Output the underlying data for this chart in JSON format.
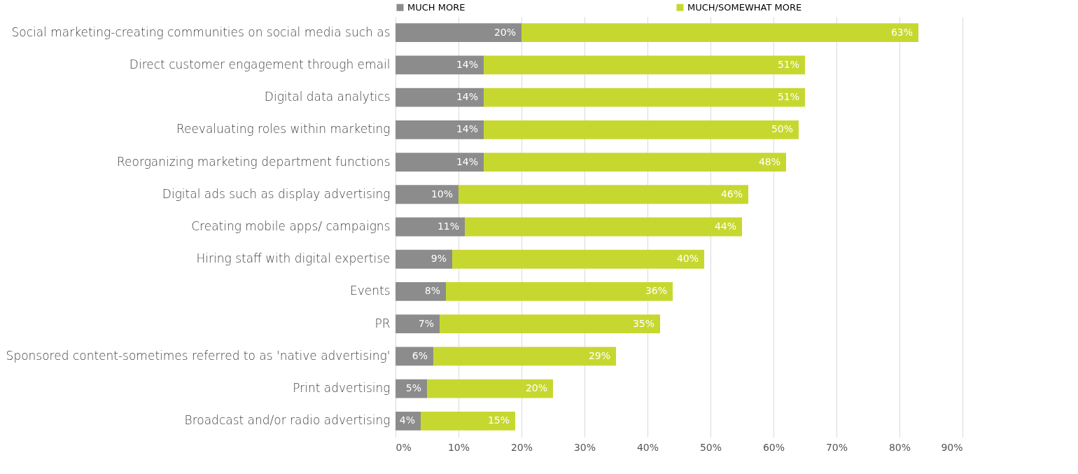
{
  "chart_data": {
    "type": "bar",
    "orientation": "horizontal",
    "stacked": true,
    "grid": "x",
    "legend": "top",
    "categories": [
      "Social marketing-creating communities on social media such as",
      "Direct customer engagement through email",
      "Digital data analytics",
      "Reevaluating roles within marketing",
      "Reorganizing marketing department functions",
      "Digital ads such as display advertising",
      "Creating mobile apps/ campaigns",
      "Hiring staff with digital expertise",
      "Events",
      "PR",
      "Sponsored content-sometimes referred to as 'native advertising'",
      "Print advertising",
      "Broadcast and/or radio advertising"
    ],
    "series": [
      {
        "name": "MUCH MORE",
        "color": "#8c8c8c",
        "values": [
          20,
          14,
          14,
          14,
          14,
          10,
          11,
          9,
          8,
          7,
          6,
          5,
          4
        ],
        "value_labels": [
          "20%",
          "14%",
          "14%",
          "14%",
          "14%",
          "10%",
          "11%",
          "9%",
          "8%",
          "7%",
          "6%",
          "5%",
          "4%"
        ]
      },
      {
        "name": "MUCH/SOMEWHAT MORE",
        "color": "#c6d830",
        "values": [
          63,
          51,
          51,
          50,
          48,
          46,
          44,
          40,
          36,
          35,
          29,
          20,
          15
        ],
        "value_labels": [
          "63%",
          "51%",
          "51%",
          "50%",
          "48%",
          "46%",
          "44%",
          "40%",
          "36%",
          "35%",
          "29%",
          "20%",
          "15%"
        ]
      }
    ],
    "xlim": [
      0,
      90
    ],
    "xticks": [
      {
        "value": 0,
        "label": "0%"
      },
      {
        "value": 10,
        "label": "10%"
      },
      {
        "value": 20,
        "label": "20%"
      },
      {
        "value": 30,
        "label": "30%"
      },
      {
        "value": 40,
        "label": "40%"
      },
      {
        "value": 50,
        "label": "50%"
      },
      {
        "value": 60,
        "label": "60%"
      },
      {
        "value": 70,
        "label": "70%"
      },
      {
        "value": 80,
        "label": "80%"
      },
      {
        "value": 90,
        "label": "90%"
      }
    ]
  }
}
